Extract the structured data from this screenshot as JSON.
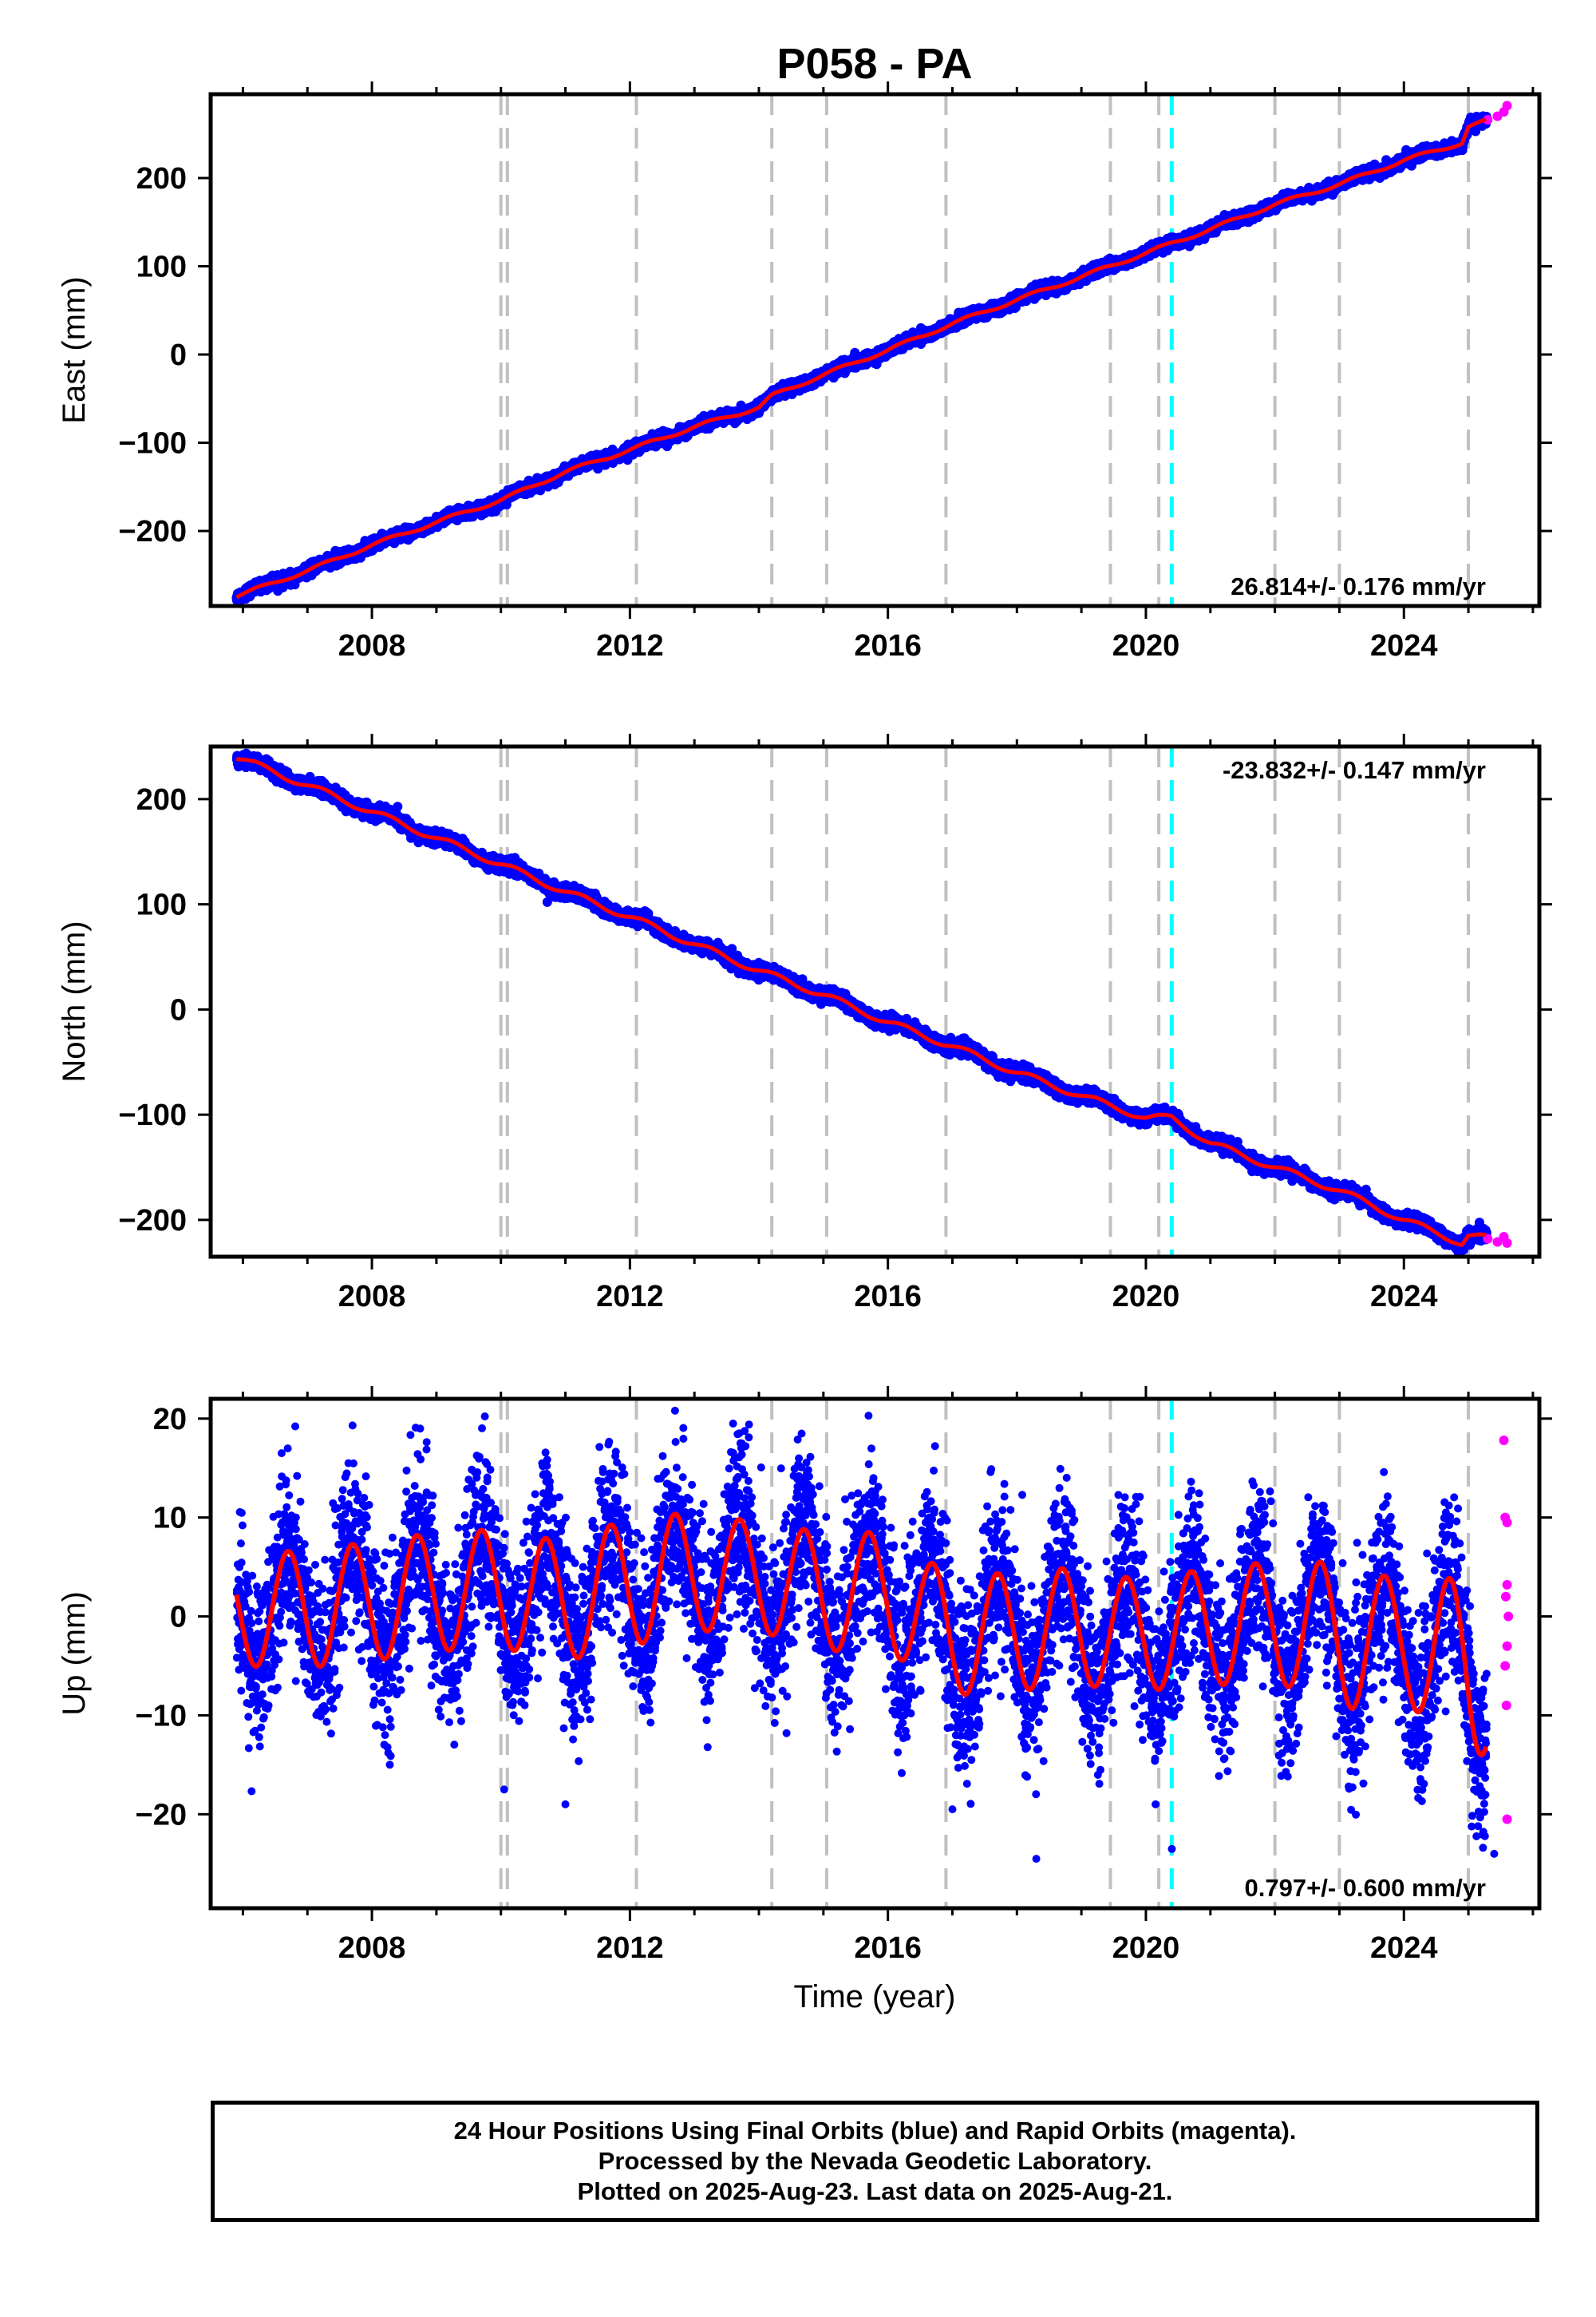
{
  "title": "P058 - PA",
  "xlabel": "Time (year)",
  "footer": {
    "line1": "24 Hour Positions Using Final Orbits (blue) and Rapid Orbits (magenta).",
    "line2": "Processed by the Nevada Geodetic Laboratory.",
    "line3": "Plotted on 2025-Aug-23. Last data on 2025-Aug-21."
  },
  "colors": {
    "final_orbits": "#0000ff",
    "rapid_orbits": "#ff00ff",
    "model_fit": "#ff0000",
    "equipment_change_lines": "#c0c0c0",
    "earthquake_line": "#00ffff"
  },
  "chart_data": [
    {
      "type": "scatter",
      "panel": "east",
      "ylabel": "East (mm)",
      "rate_label": "26.814+/- 0.176 mm/yr",
      "xlim": [
        2005.5,
        2026.1
      ],
      "ylim": [
        -285,
        295
      ],
      "xticks": [
        2008,
        2012,
        2016,
        2020,
        2024
      ],
      "xtick_labels": [
        "2008",
        "2012",
        "2016",
        "2020",
        "2024"
      ],
      "yticks": [
        -200,
        -100,
        0,
        100,
        200
      ],
      "ytick_labels": [
        "−200",
        "−100",
        "0",
        "100",
        "200"
      ],
      "grid": false,
      "gray_dashed_lines": [
        2010.0,
        2010.1,
        2012.1,
        2014.2,
        2015.05,
        2016.9,
        2019.45,
        2020.2,
        2022.0,
        2023.0,
        2025.0
      ],
      "cyan_dashed_lines": [
        2020.4
      ],
      "fit_points": {
        "x": [
          2005.9,
          2007.0,
          2008.0,
          2009.0,
          2010.0,
          2011.0,
          2012.0,
          2013.0,
          2014.0,
          2014.2,
          2015.0,
          2016.0,
          2017.0,
          2018.0,
          2019.0,
          2020.0,
          2021.0,
          2022.0,
          2023.0,
          2024.0,
          2024.9,
          2025.0,
          2025.6
        ],
        "y": [
          -274,
          -245,
          -216,
          -190,
          -165,
          -133,
          -108,
          -82,
          -60,
          -47,
          -23,
          5,
          35,
          62,
          88,
          115,
          142,
          170,
          193,
          220,
          240,
          258,
          272
        ]
      },
      "noise_std": 3,
      "seasonal_amp": 2,
      "rapid_points": {
        "x": [
          2025.3,
          2025.45,
          2025.55,
          2025.6
        ],
        "y": [
          266,
          270,
          275,
          282
        ]
      }
    },
    {
      "type": "scatter",
      "panel": "north",
      "ylabel": "North (mm)",
      "rate_label": "-23.832+/- 0.147 mm/yr",
      "xlim": [
        2005.5,
        2026.1
      ],
      "ylim": [
        -235,
        250
      ],
      "xticks": [
        2008,
        2012,
        2016,
        2020,
        2024
      ],
      "xtick_labels": [
        "2008",
        "2012",
        "2016",
        "2020",
        "2024"
      ],
      "yticks": [
        -200,
        -100,
        0,
        100,
        200
      ],
      "ytick_labels": [
        "−200",
        "−100",
        "0",
        "100",
        "200"
      ],
      "grid": false,
      "gray_dashed_lines": [
        2010.0,
        2010.1,
        2012.1,
        2014.2,
        2015.05,
        2016.9,
        2019.45,
        2020.2,
        2022.0,
        2023.0,
        2025.0
      ],
      "cyan_dashed_lines": [
        2020.4
      ],
      "fit_points": {
        "x": [
          2005.9,
          2007.0,
          2008.0,
          2009.0,
          2010.0,
          2011.0,
          2012.0,
          2013.0,
          2014.0,
          2015.0,
          2016.0,
          2017.0,
          2018.0,
          2019.0,
          2020.0,
          2020.4,
          2021.0,
          2022.0,
          2023.0,
          2024.0,
          2024.9,
          2025.0,
          2025.6
        ],
        "y": [
          240,
          213,
          188,
          163,
          138,
          112,
          88,
          62,
          37,
          14,
          -12,
          -35,
          -60,
          -82,
          -103,
          -103,
          -127,
          -150,
          -172,
          -200,
          -222,
          -215,
          -220
        ]
      },
      "noise_std": 3,
      "seasonal_amp": 3,
      "rapid_points": {
        "x": [
          2025.3,
          2025.45,
          2025.55,
          2025.6
        ],
        "y": [
          -218,
          -221,
          -216,
          -222
        ]
      }
    },
    {
      "type": "scatter",
      "panel": "up",
      "ylabel": "Up (mm)",
      "rate_label": "0.797+/- 0.600 mm/yr",
      "xlim": [
        2005.5,
        2026.1
      ],
      "ylim": [
        -29.5,
        22
      ],
      "xticks": [
        2008,
        2012,
        2016,
        2020,
        2024
      ],
      "xtick_labels": [
        "2008",
        "2012",
        "2016",
        "2020",
        "2024"
      ],
      "yticks": [
        -20,
        -10,
        0,
        10,
        20
      ],
      "ytick_labels": [
        "−20",
        "−10",
        "0",
        "10",
        "20"
      ],
      "grid": false,
      "gray_dashed_lines": [
        2010.0,
        2010.1,
        2012.1,
        2014.2,
        2015.05,
        2016.9,
        2019.45,
        2020.2,
        2022.0,
        2023.0,
        2025.0
      ],
      "cyan_dashed_lines": [
        2020.4
      ],
      "seasonal_fit": {
        "x": [
          2005.9,
          2007.0,
          2008.0,
          2009.0,
          2010.0,
          2011.0,
          2012.0,
          2013.0,
          2014.0,
          2015.0,
          2016.0,
          2017.0,
          2018.0,
          2019.0,
          2020.0,
          2021.0,
          2022.0,
          2023.0,
          2024.0,
          2025.0,
          2025.6
        ],
        "mean": [
          0.5,
          0.8,
          1.5,
          2.5,
          2.8,
          1.5,
          3.5,
          4.5,
          4.0,
          2.5,
          2.5,
          -2.0,
          -1.5,
          -1.0,
          -2.0,
          -1.0,
          -0.5,
          -2.0,
          -2.5,
          -5.0,
          -8.0
        ],
        "amp": [
          5.5,
          6.0,
          6.0,
          6.0,
          6.0,
          6.0,
          6.5,
          6.0,
          5.5,
          6.0,
          6.0,
          6.0,
          6.0,
          6.0,
          5.5,
          6.0,
          6.0,
          7.5,
          6.0,
          9.0,
          6.0
        ],
        "peak_fraction_of_year": 0.7
      },
      "noise_std": 4.2,
      "outliers": {
        "x": [
          2006.6,
          2007.7,
          2010.05,
          2011.0,
          2012.7,
          2013.6,
          2015.7,
          2017.0,
          2018.3,
          2020.15,
          2025.4
        ],
        "y": [
          16.5,
          19.3,
          -17.5,
          -19.0,
          20.8,
          19.5,
          20.3,
          -19.5,
          -24.5,
          -19.0,
          -24.0
        ]
      },
      "rapid_points": {
        "x": [
          2025.55,
          2025.57,
          2025.6,
          2025.6,
          2025.58,
          2025.62,
          2025.6,
          2025.57,
          2025.59,
          2025.6
        ],
        "y": [
          17.8,
          10.0,
          9.5,
          3.2,
          2.0,
          0.0,
          -3.0,
          -5.0,
          -9.0,
          -20.5
        ]
      }
    }
  ]
}
